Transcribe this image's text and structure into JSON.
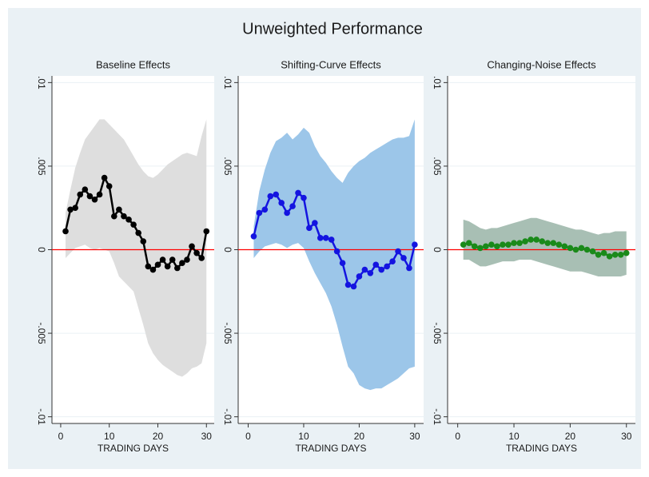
{
  "title": "Unweighted Performance",
  "chart_data": [
    {
      "type": "line",
      "title": "Baseline Effects",
      "xlabel": "TRADING DAYS",
      "x": [
        1,
        2,
        3,
        4,
        5,
        6,
        7,
        8,
        9,
        10,
        11,
        12,
        13,
        14,
        15,
        16,
        17,
        18,
        19,
        20,
        21,
        22,
        23,
        24,
        25,
        26,
        27,
        28,
        29,
        30
      ],
      "series": [
        {
          "color": "#000000",
          "values": [
            0.0011,
            0.0024,
            0.0025,
            0.0033,
            0.0036,
            0.0032,
            0.003,
            0.0033,
            0.0043,
            0.0038,
            0.002,
            0.0024,
            0.002,
            0.0018,
            0.0015,
            0.001,
            0.0005,
            -0.001,
            -0.0012,
            -0.0009,
            -0.0006,
            -0.001,
            -0.0006,
            -0.0011,
            -0.0008,
            -0.0006,
            0.0002,
            -0.0002,
            -0.0005,
            0.0011
          ],
          "upper": [
            0.0022,
            0.0036,
            0.0049,
            0.0058,
            0.0066,
            0.007,
            0.0074,
            0.0078,
            0.0078,
            0.0075,
            0.0072,
            0.0069,
            0.0066,
            0.0061,
            0.0056,
            0.0051,
            0.0047,
            0.0044,
            0.0043,
            0.0045,
            0.0048,
            0.0051,
            0.0053,
            0.0055,
            0.0057,
            0.0058,
            0.0057,
            0.0056,
            0.0068,
            0.0078
          ],
          "lower": [
            -0.0005,
            -0.0002,
            0.0001,
            0.0002,
            0.0003,
            0.0001,
            0,
            0.0001,
            0,
            -0.0001,
            -0.0008,
            -0.0016,
            -0.0019,
            -0.0022,
            -0.0025,
            -0.0035,
            -0.0045,
            -0.0056,
            -0.0062,
            -0.0066,
            -0.0069,
            -0.0071,
            -0.0073,
            -0.0075,
            -0.0076,
            -0.0074,
            -0.0071,
            -0.007,
            -0.0068,
            -0.0056
          ],
          "band_color": "#dedede"
        }
      ],
      "reference_line": {
        "y": 0,
        "color": "#ff0000"
      },
      "xlim": [
        -1.8,
        31.6
      ],
      "xticks": [
        0,
        10,
        20,
        30
      ],
      "ylim": [
        -0.0104,
        0.0104
      ],
      "yticks": [
        {
          "value": -0.01,
          "label": "-.01"
        },
        {
          "value": -0.005,
          "label": "-.005"
        },
        0,
        {
          "value": 0.005,
          "label": ".005"
        },
        {
          "value": 0.01,
          "label": ".01"
        }
      ],
      "grid": true
    },
    {
      "type": "line",
      "title": "Shifting-Curve Effects",
      "xlabel": "TRADING DAYS",
      "x": [
        1,
        2,
        3,
        4,
        5,
        6,
        7,
        8,
        9,
        10,
        11,
        12,
        13,
        14,
        15,
        16,
        17,
        18,
        19,
        20,
        21,
        22,
        23,
        24,
        25,
        26,
        27,
        28,
        29,
        30
      ],
      "series": [
        {
          "color": "#1414e0",
          "values": [
            0.0008,
            0.0022,
            0.0024,
            0.0032,
            0.0033,
            0.0028,
            0.0022,
            0.0026,
            0.0034,
            0.0031,
            0.0013,
            0.0016,
            0.0007,
            0.0007,
            0.0006,
            -0.0001,
            -0.0008,
            -0.0021,
            -0.0022,
            -0.0016,
            -0.0012,
            -0.0014,
            -0.0009,
            -0.0012,
            -0.001,
            -0.0007,
            -0.0001,
            -0.0005,
            -0.0011,
            0.0003
          ],
          "upper": [
            0.0014,
            0.0035,
            0.0048,
            0.0058,
            0.0065,
            0.0067,
            0.007,
            0.0066,
            0.0069,
            0.0073,
            0.007,
            0.0062,
            0.0056,
            0.0052,
            0.0047,
            0.0043,
            0.004,
            0.0046,
            0.005,
            0.0053,
            0.0055,
            0.0058,
            0.006,
            0.0062,
            0.0064,
            0.0066,
            0.0067,
            0.0067,
            0.0068,
            0.0078
          ],
          "lower": [
            -0.0005,
            -0.0001,
            0.0002,
            0.0003,
            0.0004,
            0.0003,
            0.0001,
            0.0003,
            0.0004,
            0.0001,
            -0.0007,
            -0.0014,
            -0.002,
            -0.0026,
            -0.0034,
            -0.0045,
            -0.0058,
            -0.007,
            -0.0074,
            -0.0081,
            -0.0083,
            -0.0084,
            -0.0083,
            -0.0083,
            -0.0081,
            -0.0079,
            -0.0077,
            -0.0074,
            -0.0071,
            -0.007
          ],
          "band_color": "#9cc6e9"
        }
      ],
      "reference_line": {
        "y": 0,
        "color": "#ff0000"
      },
      "xlim": [
        -1.8,
        31.6
      ],
      "xticks": [
        0,
        10,
        20,
        30
      ],
      "ylim": [
        -0.0104,
        0.0104
      ],
      "yticks": [
        {
          "value": -0.01,
          "label": "-.01"
        },
        {
          "value": -0.005,
          "label": "-.005"
        },
        0,
        {
          "value": 0.005,
          "label": ".005"
        },
        {
          "value": 0.01,
          "label": ".01"
        }
      ],
      "grid": true
    },
    {
      "type": "line",
      "title": "Changing-Noise Effects",
      "xlabel": "TRADING DAYS",
      "x": [
        1,
        2,
        3,
        4,
        5,
        6,
        7,
        8,
        9,
        10,
        11,
        12,
        13,
        14,
        15,
        16,
        17,
        18,
        19,
        20,
        21,
        22,
        23,
        24,
        25,
        26,
        27,
        28,
        29,
        30
      ],
      "series": [
        {
          "color": "#1a8a1a",
          "values": [
            0.0003,
            0.0004,
            0.0002,
            0.0001,
            0.0002,
            0.0003,
            0.0002,
            0.0003,
            0.0003,
            0.0004,
            0.0004,
            0.0005,
            0.0006,
            0.0006,
            0.0005,
            0.0004,
            0.0004,
            0.0003,
            0.0002,
            0.0001,
            0,
            0.0001,
            0,
            -0.0001,
            -0.0003,
            -0.0002,
            -0.0004,
            -0.0003,
            -0.0003,
            -0.0002
          ],
          "upper": [
            0.0018,
            0.0017,
            0.0015,
            0.0013,
            0.0012,
            0.0013,
            0.0013,
            0.0014,
            0.0015,
            0.0016,
            0.0017,
            0.0018,
            0.0019,
            0.0019,
            0.0018,
            0.0017,
            0.0016,
            0.0015,
            0.0014,
            0.0013,
            0.0012,
            0.0012,
            0.0011,
            0.001,
            0.0009,
            0.001,
            0.001,
            0.0011,
            0.0011,
            0.0011
          ],
          "lower": [
            -0.0006,
            -0.0006,
            -0.0008,
            -0.001,
            -0.001,
            -0.0009,
            -0.0008,
            -0.0007,
            -0.0007,
            -0.0007,
            -0.0006,
            -0.0006,
            -0.0006,
            -0.0007,
            -0.0008,
            -0.0009,
            -0.001,
            -0.0011,
            -0.0012,
            -0.0013,
            -0.0013,
            -0.0013,
            -0.0014,
            -0.0015,
            -0.0016,
            -0.0016,
            -0.0016,
            -0.0016,
            -0.0016,
            -0.0015
          ],
          "band_color": "#a8bfb4"
        }
      ],
      "reference_line": {
        "y": 0,
        "color": "#ff0000"
      },
      "xlim": [
        -1.8,
        31.6
      ],
      "xticks": [
        0,
        10,
        20,
        30
      ],
      "ylim": [
        -0.0104,
        0.0104
      ],
      "yticks": [
        {
          "value": -0.01,
          "label": "-.01"
        },
        {
          "value": -0.005,
          "label": "-.005"
        },
        0,
        {
          "value": 0.005,
          "label": ".005"
        },
        {
          "value": 0.01,
          "label": ".01"
        }
      ],
      "grid": true
    }
  ]
}
